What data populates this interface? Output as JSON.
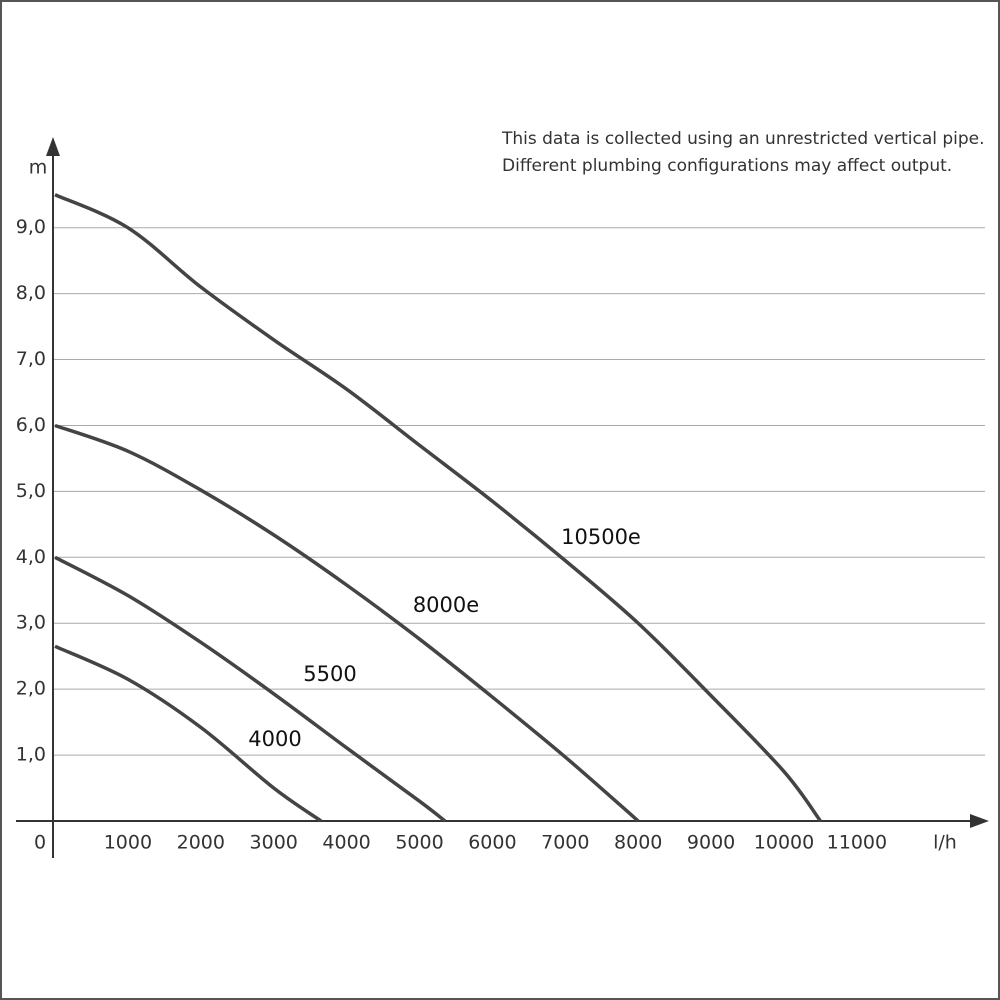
{
  "chart_data": {
    "type": "line",
    "xlabel": "l/h",
    "ylabel": "m",
    "annotation": [
      "This data is collected using an unrestricted vertical pipe.",
      "Different plumbing configurations may affect output."
    ],
    "xlim": [
      0,
      12500
    ],
    "ylim": [
      0,
      10.3
    ],
    "xticks": [
      0,
      1000,
      2000,
      3000,
      4000,
      5000,
      6000,
      7000,
      8000,
      9000,
      10000,
      11000
    ],
    "yticks": [
      {
        "value": 1,
        "label": "1,0"
      },
      {
        "value": 2,
        "label": "2,0"
      },
      {
        "value": 3,
        "label": "3,0"
      },
      {
        "value": 4,
        "label": "4,0"
      },
      {
        "value": 5,
        "label": "5,0"
      },
      {
        "value": 6,
        "label": "6,0"
      },
      {
        "value": 7,
        "label": "7,0"
      },
      {
        "value": 8,
        "label": "8,0"
      },
      {
        "value": 9,
        "label": "9,0"
      }
    ],
    "grid": true,
    "series": [
      {
        "name": "4000",
        "color": "#444444",
        "x": [
          0,
          1000,
          2000,
          3000,
          3650
        ],
        "values": [
          2.65,
          2.15,
          1.42,
          0.5,
          0
        ]
      },
      {
        "name": "5500",
        "color": "#444444",
        "x": [
          0,
          1000,
          2000,
          3000,
          4000,
          5000,
          5350
        ],
        "values": [
          4,
          3.42,
          2.71,
          1.93,
          1.11,
          0.3,
          0
        ]
      },
      {
        "name": "8000e",
        "color": "#444444",
        "x": [
          0,
          1000,
          2000,
          3000,
          4000,
          5000,
          6000,
          7000,
          8000
        ],
        "values": [
          6,
          5.61,
          5.02,
          4.34,
          3.58,
          2.76,
          1.88,
          0.97,
          0
        ]
      },
      {
        "name": "10500e",
        "color": "#444444",
        "x": [
          0,
          1000,
          2000,
          3000,
          4000,
          5000,
          6000,
          7000,
          8000,
          9000,
          10000,
          10500
        ],
        "values": [
          9.5,
          9.0,
          8.1,
          7.3,
          6.55,
          5.7,
          4.85,
          3.95,
          3.0,
          1.9,
          0.75,
          0
        ]
      }
    ]
  }
}
